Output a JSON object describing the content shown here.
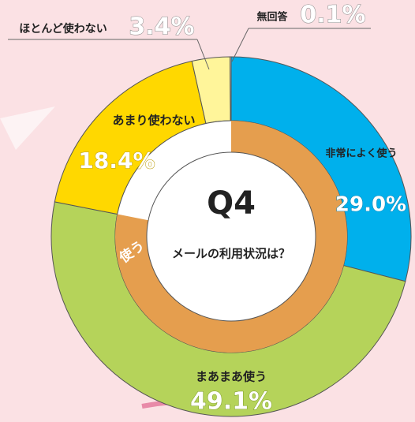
{
  "chart_data": {
    "type": "donut",
    "title": "Q4",
    "subtitle": "メールの利用状況は？",
    "categories": [
      "非常によく使う",
      "まあまあ使う",
      "あまり使わない",
      "ほとんど使わない",
      "無回答"
    ],
    "values": [
      29.0,
      49.1,
      18.4,
      3.4,
      0.1
    ],
    "value_labels": [
      "29.0%",
      "49.1%",
      "18.4%",
      "3.4%",
      "0.1%"
    ],
    "colors": [
      "#00b0ec",
      "#b5d35a",
      "#ffd800",
      "#fff59a",
      "#ffffff"
    ],
    "group": {
      "label": "使う",
      "members": [
        0,
        1
      ],
      "color": "#e59e4e"
    }
  }
}
